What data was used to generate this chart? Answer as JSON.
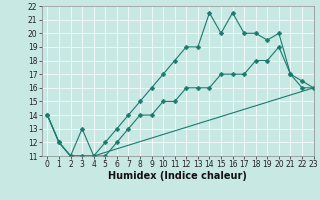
{
  "line1_x": [
    0,
    1,
    2,
    3,
    4,
    5,
    6,
    7,
    8,
    9,
    10,
    11,
    12,
    13,
    14,
    15,
    16,
    17,
    18,
    19,
    20,
    21,
    22,
    23
  ],
  "line1_y": [
    14,
    12,
    11,
    11,
    11,
    12,
    13,
    14,
    15,
    16,
    17,
    18,
    19,
    19,
    21.5,
    20,
    21.5,
    20,
    20,
    19.5,
    20,
    17,
    16.5,
    16
  ],
  "line2_x": [
    0,
    1,
    2,
    3,
    4,
    5,
    6,
    7,
    8,
    9,
    10,
    11,
    12,
    13,
    14,
    15,
    16,
    17,
    18,
    19,
    20,
    21,
    22,
    23
  ],
  "line2_y": [
    14,
    12,
    11,
    13,
    11,
    11,
    12,
    13,
    14,
    14,
    15,
    15,
    16,
    16,
    16,
    17,
    17,
    17,
    18,
    18,
    19,
    17,
    16,
    16
  ],
  "line3_x": [
    0,
    1,
    2,
    3,
    4,
    23
  ],
  "line3_y": [
    14,
    12,
    11,
    11,
    11,
    16
  ],
  "color": "#1a7a6e",
  "bg_color": "#c8e8e4",
  "xlabel": "Humidex (Indice chaleur)",
  "ylim": [
    11,
    22
  ],
  "xlim": [
    -0.5,
    23
  ],
  "yticks": [
    11,
    12,
    13,
    14,
    15,
    16,
    17,
    18,
    19,
    20,
    21,
    22
  ],
  "xticks": [
    0,
    1,
    2,
    3,
    4,
    5,
    6,
    7,
    8,
    9,
    10,
    11,
    12,
    13,
    14,
    15,
    16,
    17,
    18,
    19,
    20,
    21,
    22,
    23
  ],
  "tick_fontsize": 5.5,
  "xlabel_fontsize": 7,
  "grid_color": "#ffffff",
  "line_width": 0.8,
  "marker_size": 2.5
}
